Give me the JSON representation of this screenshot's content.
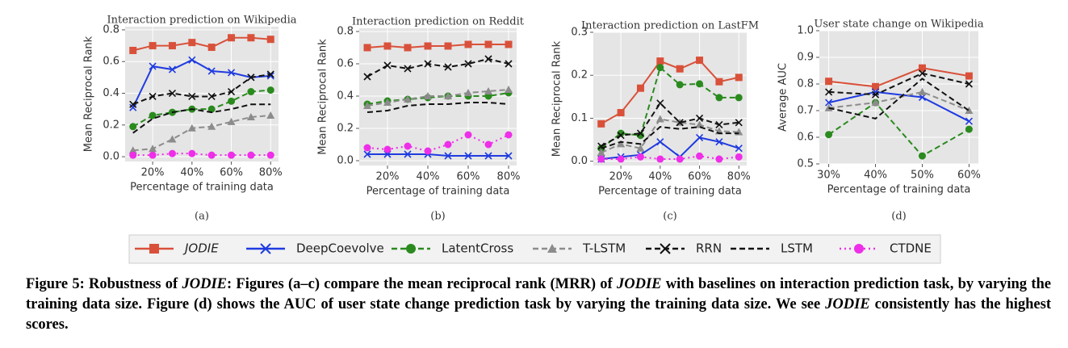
{
  "chart_data": [
    {
      "type": "line",
      "title": "Interaction prediction on Wikipedia",
      "xlabel": "Percentage of training data",
      "ylabel": "Mean Reciprocal Rank",
      "label": "(a)",
      "x": [
        10,
        20,
        30,
        40,
        50,
        60,
        70,
        80
      ],
      "xlim": [
        6,
        84
      ],
      "xticks": [
        {
          "value": 20,
          "label": "20%"
        },
        {
          "value": 40,
          "label": "40%"
        },
        {
          "value": 60,
          "label": "60%"
        },
        {
          "value": 80,
          "label": "80%"
        }
      ],
      "ylim": [
        -0.03,
        0.82
      ],
      "yticks": [
        {
          "value": 0,
          "label": "0.0"
        },
        0.2,
        0.4,
        0.6,
        0.8
      ],
      "grid": true,
      "series": [
        {
          "name": "JODIE",
          "color": "#d9513a",
          "marker": "square",
          "dash": "solid",
          "values": [
            0.67,
            0.7,
            0.7,
            0.72,
            0.69,
            0.75,
            0.75,
            0.74
          ]
        },
        {
          "name": "DeepCoevolve",
          "color": "#1f3be0",
          "marker": "x",
          "dash": "solid",
          "values": [
            0.31,
            0.57,
            0.55,
            0.61,
            0.54,
            0.53,
            0.5,
            0.51
          ]
        },
        {
          "name": "LatentCross",
          "color": "#2a8a1e",
          "marker": "circle",
          "dash": "dashed",
          "values": [
            0.19,
            0.26,
            0.28,
            0.3,
            0.3,
            0.35,
            0.41,
            0.42
          ]
        },
        {
          "name": "T-LSTM",
          "color": "#8c8c8c",
          "marker": "triangle",
          "dash": "dashed",
          "values": [
            0.04,
            0.05,
            0.11,
            0.18,
            0.19,
            0.22,
            0.25,
            0.26
          ]
        },
        {
          "name": "RRN",
          "color": "#111111",
          "marker": "x",
          "dash": "dashed",
          "values": [
            0.33,
            0.38,
            0.4,
            0.38,
            0.38,
            0.41,
            0.5,
            0.52
          ]
        },
        {
          "name": "LSTM",
          "color": "#111111",
          "marker": "none",
          "dash": "dashed",
          "values": [
            0.15,
            0.24,
            0.28,
            0.3,
            0.28,
            0.3,
            0.33,
            0.33
          ]
        },
        {
          "name": "CTDNE",
          "color": "#ee2ee8",
          "marker": "circle",
          "dash": "dotted",
          "values": [
            0.01,
            0.01,
            0.02,
            0.02,
            0.01,
            0.01,
            0.01,
            0.01
          ]
        }
      ]
    },
    {
      "type": "line",
      "title": "Interaction prediction on Reddit",
      "xlabel": "Percentage of training data",
      "ylabel": "Mean Reciprocal Rank",
      "label": "(b)",
      "x": [
        10,
        20,
        30,
        40,
        50,
        60,
        70,
        80
      ],
      "xlim": [
        6,
        84
      ],
      "xticks": [
        {
          "value": 20,
          "label": "20%"
        },
        {
          "value": 40,
          "label": "40%"
        },
        {
          "value": 60,
          "label": "60%"
        },
        {
          "value": 80,
          "label": "80%"
        }
      ],
      "ylim": [
        -0.03,
        0.82
      ],
      "yticks": [
        {
          "value": 0,
          "label": "0.0"
        },
        0.2,
        0.4,
        0.6,
        0.8
      ],
      "grid": true,
      "series": [
        {
          "name": "JODIE",
          "color": "#d9513a",
          "marker": "square",
          "dash": "solid",
          "values": [
            0.7,
            0.71,
            0.7,
            0.71,
            0.71,
            0.72,
            0.72,
            0.72
          ]
        },
        {
          "name": "DeepCoevolve",
          "color": "#1f3be0",
          "marker": "x",
          "dash": "solid",
          "values": [
            0.04,
            0.04,
            0.04,
            0.04,
            0.03,
            0.03,
            0.03,
            0.03
          ]
        },
        {
          "name": "LatentCross",
          "color": "#2a8a1e",
          "marker": "circle",
          "dash": "dashed",
          "values": [
            0.35,
            0.37,
            0.38,
            0.39,
            0.4,
            0.4,
            0.4,
            0.42
          ]
        },
        {
          "name": "T-LSTM",
          "color": "#8c8c8c",
          "marker": "triangle",
          "dash": "dashed",
          "values": [
            0.34,
            0.36,
            0.38,
            0.4,
            0.4,
            0.42,
            0.43,
            0.44
          ]
        },
        {
          "name": "RRN",
          "color": "#111111",
          "marker": "x",
          "dash": "dashed",
          "values": [
            0.52,
            0.59,
            0.57,
            0.6,
            0.58,
            0.6,
            0.63,
            0.6
          ]
        },
        {
          "name": "LSTM",
          "color": "#111111",
          "marker": "none",
          "dash": "dashed",
          "values": [
            0.3,
            0.31,
            0.34,
            0.35,
            0.35,
            0.36,
            0.36,
            0.35
          ]
        },
        {
          "name": "CTDNE",
          "color": "#ee2ee8",
          "marker": "circle",
          "dash": "dotted",
          "values": [
            0.08,
            0.07,
            0.09,
            0.06,
            0.1,
            0.16,
            0.1,
            0.16
          ]
        }
      ]
    },
    {
      "type": "line",
      "title": "Interaction prediction on LastFM",
      "xlabel": "Percentage of training data",
      "ylabel": "Mean Reciprocal Rank",
      "label": "(c)",
      "x": [
        10,
        20,
        30,
        40,
        50,
        60,
        70,
        80
      ],
      "xlim": [
        6,
        84
      ],
      "xticks": [
        {
          "value": 20,
          "label": "20%"
        },
        {
          "value": 40,
          "label": "40%"
        },
        {
          "value": 60,
          "label": "60%"
        },
        {
          "value": 80,
          "label": "80%"
        }
      ],
      "ylim": [
        -0.01,
        0.3
      ],
      "yticks": [
        {
          "value": 0,
          "label": "0.0"
        },
        0.1,
        0.2,
        0.3
      ],
      "grid": true,
      "series": [
        {
          "name": "JODIE",
          "color": "#d9513a",
          "marker": "square",
          "dash": "solid",
          "values": [
            0.087,
            0.113,
            0.17,
            0.233,
            0.215,
            0.235,
            0.185,
            0.195
          ]
        },
        {
          "name": "DeepCoevolve",
          "color": "#1f3be0",
          "marker": "x",
          "dash": "solid",
          "values": [
            0.005,
            0.01,
            0.015,
            0.045,
            0.01,
            0.055,
            0.045,
            0.03
          ]
        },
        {
          "name": "LatentCross",
          "color": "#2a8a1e",
          "marker": "circle",
          "dash": "dashed",
          "values": [
            0.03,
            0.065,
            0.06,
            0.218,
            0.178,
            0.18,
            0.148,
            0.148
          ]
        },
        {
          "name": "T-LSTM",
          "color": "#8c8c8c",
          "marker": "triangle",
          "dash": "dashed",
          "values": [
            0.02,
            0.04,
            0.03,
            0.098,
            0.09,
            0.085,
            0.07,
            0.068
          ]
        },
        {
          "name": "RRN",
          "color": "#111111",
          "marker": "x",
          "dash": "dashed",
          "values": [
            0.035,
            0.06,
            0.065,
            0.135,
            0.09,
            0.1,
            0.085,
            0.09
          ]
        },
        {
          "name": "LSTM",
          "color": "#111111",
          "marker": "none",
          "dash": "dashed",
          "values": [
            0.03,
            0.045,
            0.04,
            0.08,
            0.075,
            0.08,
            0.065,
            0.065
          ]
        },
        {
          "name": "CTDNE",
          "color": "#ee2ee8",
          "marker": "circle",
          "dash": "dotted",
          "values": [
            0.005,
            0.005,
            0.01,
            0.005,
            0.005,
            0.012,
            0.005,
            0.01
          ]
        }
      ]
    },
    {
      "type": "line",
      "title": "User state change on Wikipedia",
      "xlabel": "Percentage of training data",
      "ylabel": "Average AUC",
      "label": "(d)",
      "x": [
        30,
        40,
        50,
        60
      ],
      "xlim": [
        28,
        62
      ],
      "xticks": [
        {
          "value": 30,
          "label": "30%"
        },
        {
          "value": 40,
          "label": "40%"
        },
        {
          "value": 50,
          "label": "50%"
        },
        {
          "value": 60,
          "label": "60%"
        }
      ],
      "ylim": [
        0.5,
        1.0
      ],
      "yticks": [
        0.5,
        0.6,
        0.7,
        0.8,
        0.9,
        {
          "value": 1.0,
          "label": "1.0"
        }
      ],
      "grid": true,
      "series": [
        {
          "name": "JODIE",
          "color": "#d9513a",
          "marker": "square",
          "dash": "solid",
          "values": [
            0.81,
            0.79,
            0.86,
            0.83
          ]
        },
        {
          "name": "DeepCoevolve",
          "color": "#1f3be0",
          "marker": "x",
          "dash": "solid",
          "values": [
            0.73,
            0.77,
            0.75,
            0.66
          ]
        },
        {
          "name": "LatentCross",
          "color": "#2a8a1e",
          "marker": "circle",
          "dash": "dashed",
          "values": [
            0.61,
            0.73,
            0.53,
            0.63
          ]
        },
        {
          "name": "T-LSTM",
          "color": "#8c8c8c",
          "marker": "triangle",
          "dash": "dashed",
          "values": [
            0.71,
            0.73,
            0.77,
            0.7
          ]
        },
        {
          "name": "RRN",
          "color": "#111111",
          "marker": "x",
          "dash": "dashed",
          "values": [
            0.77,
            0.76,
            0.84,
            0.8
          ]
        },
        {
          "name": "LSTM",
          "color": "#111111",
          "marker": "none",
          "dash": "dashed",
          "values": [
            0.71,
            0.67,
            0.82,
            0.7
          ]
        }
      ]
    }
  ],
  "caption": [
    "Figure 5: Robustness of ",
    "JODIE",
    ": Figures (a–c) compare the mean reciprocal rank (MRR) of ",
    "JODIE",
    " with baselines on interaction prediction task, by varying the training data size. Figure (d) shows the AUC of user state change prediction task by varying the training data size. We see ",
    "JODIE",
    " consistently has the highest scores."
  ]
}
